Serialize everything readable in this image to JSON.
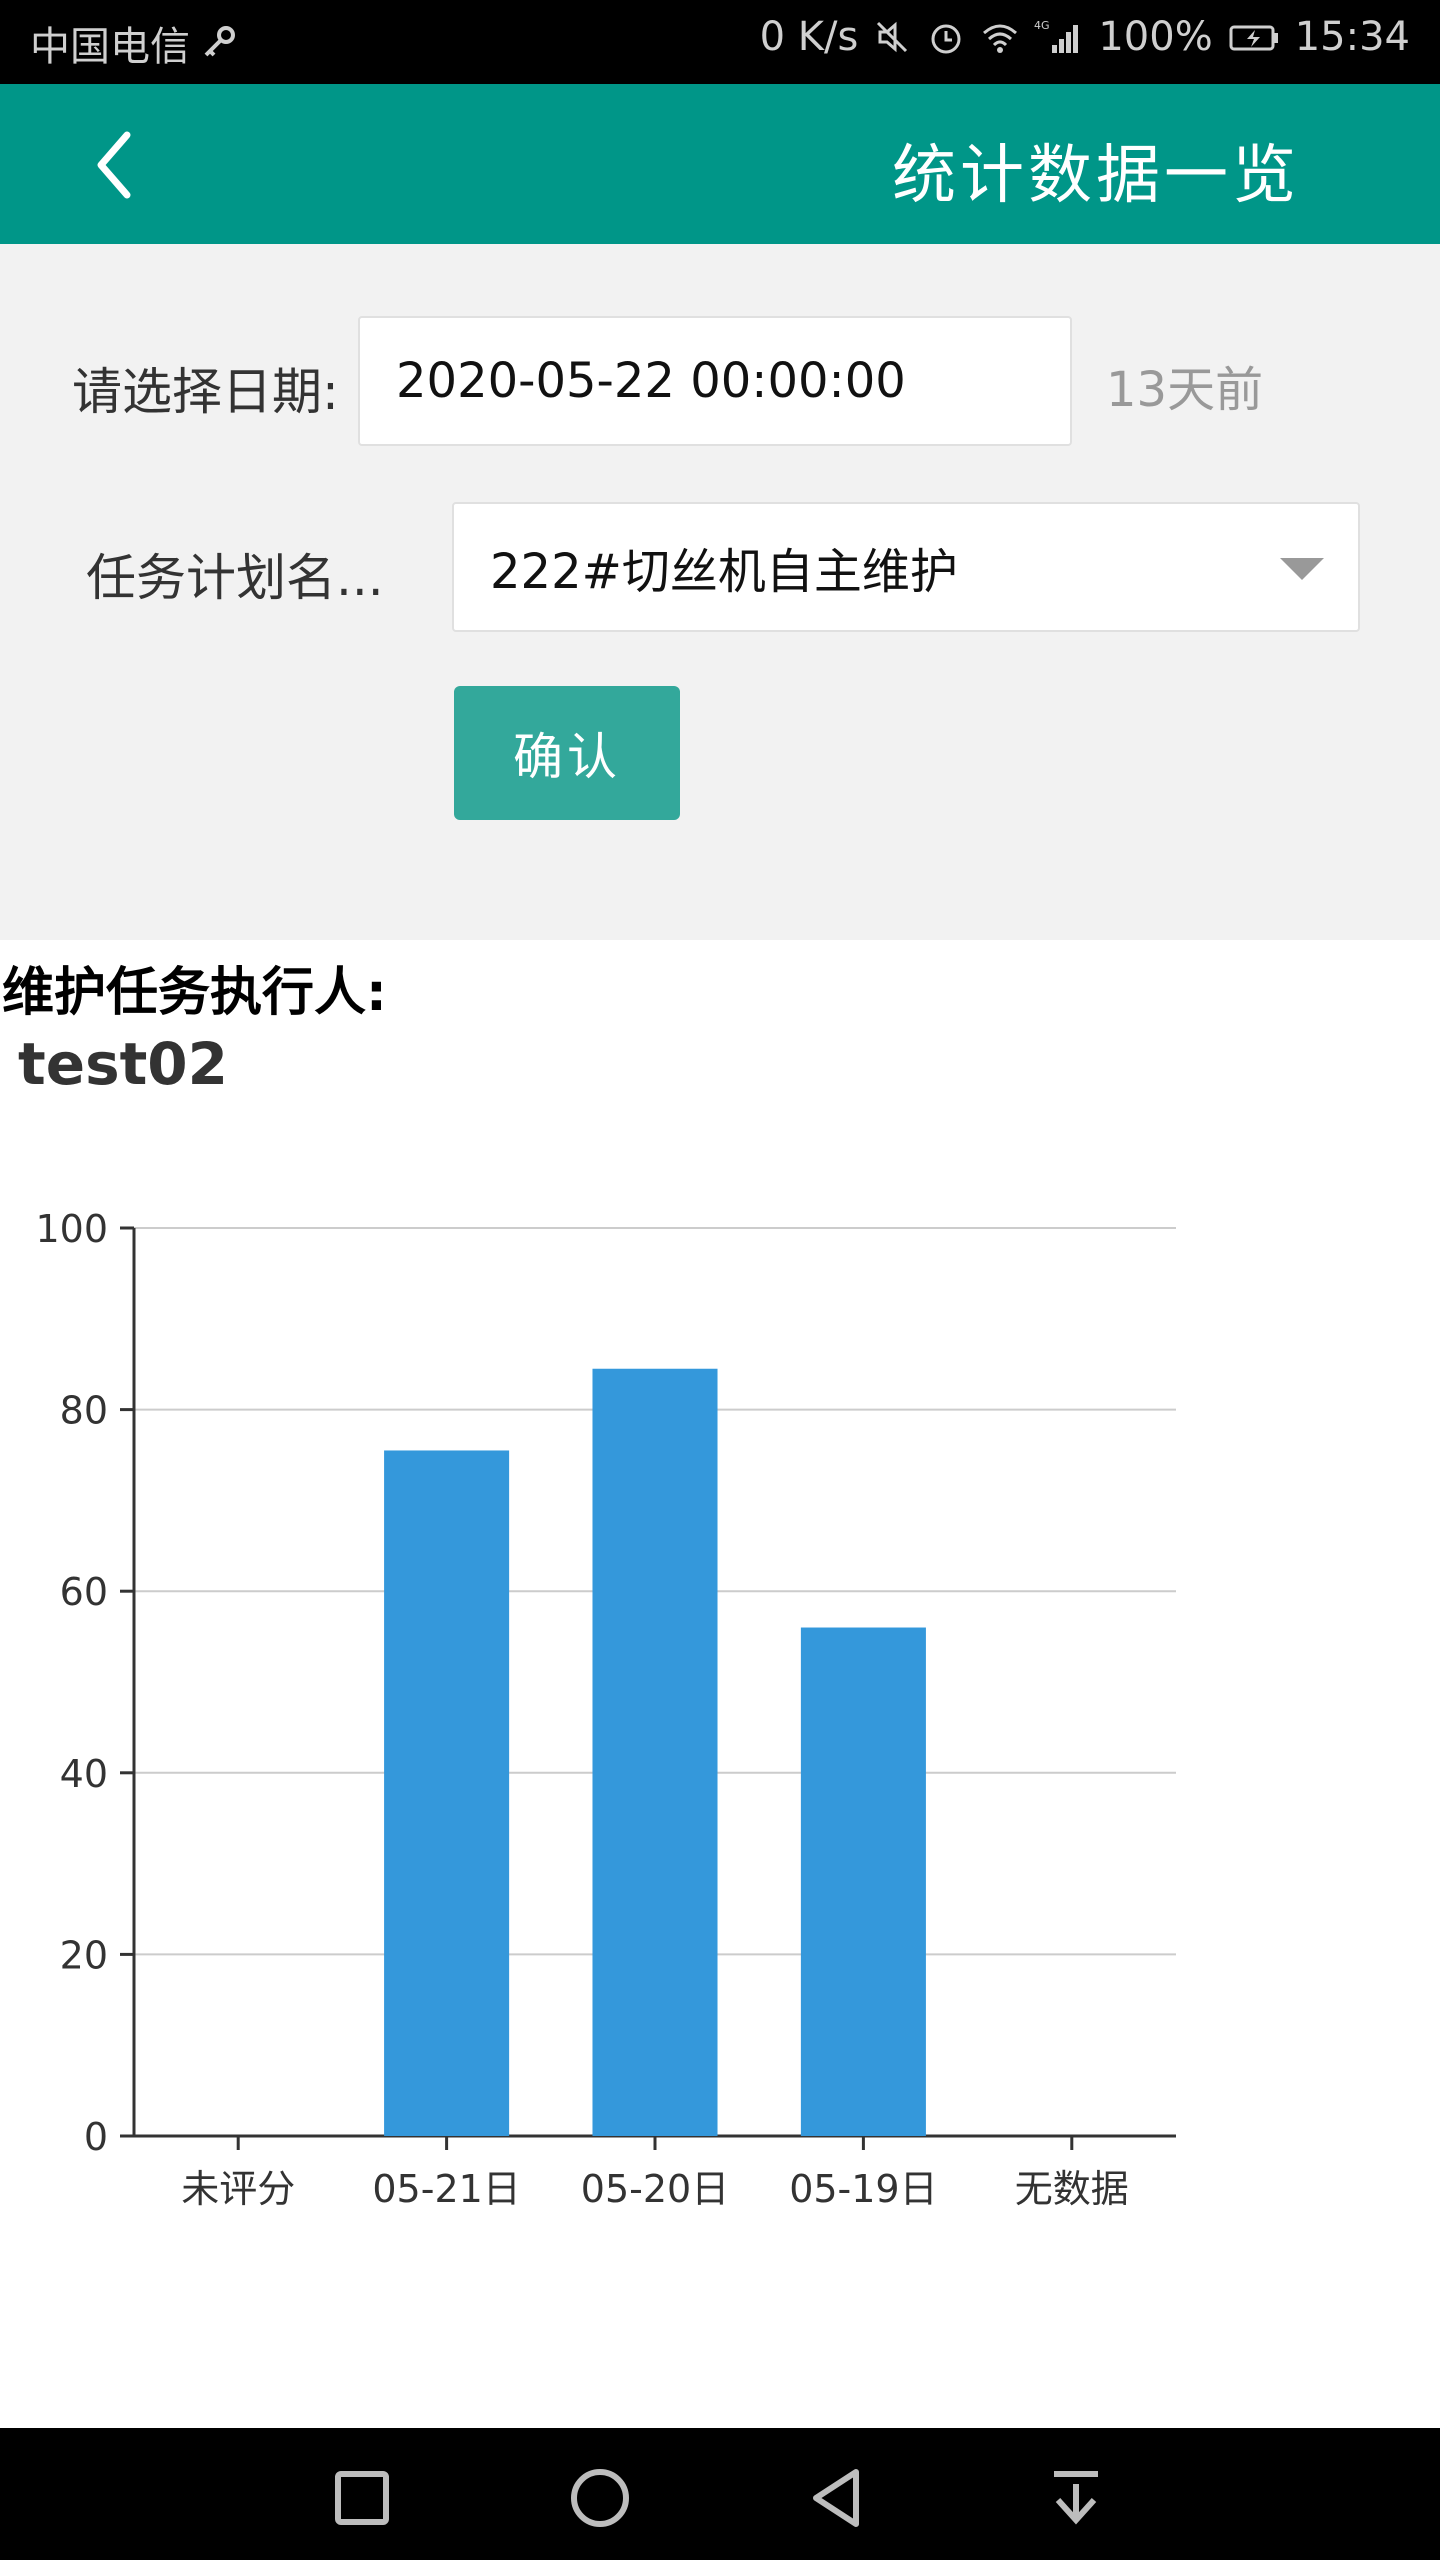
{
  "status_bar": {
    "carrier": "中国电信",
    "net_speed": "0 K/s",
    "network": "4G",
    "battery": "100%",
    "time": "15:34"
  },
  "app_bar": {
    "title": "统计数据一览",
    "back_icon": "chevron-left-icon"
  },
  "form": {
    "date_label": "请选择日期:",
    "date_value": "2020-05-22 00:00:00",
    "days_ago": "13天前",
    "plan_label": "任务计划名...",
    "plan_value": "222#切丝机自主维护",
    "confirm_label": "确认"
  },
  "executor": {
    "label": "维护任务执行人:",
    "name": "test02"
  },
  "chart_data": {
    "type": "bar",
    "categories": [
      "未评分",
      "05-21日",
      "05-20日",
      "05-19日",
      "无数据"
    ],
    "values": [
      0,
      75.5,
      84.5,
      56,
      0
    ],
    "ylim": [
      0,
      100
    ],
    "yticks": [
      "0",
      "20",
      "40",
      "60",
      "80",
      "100"
    ],
    "grid": true,
    "bar_color": "#3498db"
  },
  "colors": {
    "primary": "#009688",
    "button": "#33a89b",
    "bar": "#3498db"
  }
}
